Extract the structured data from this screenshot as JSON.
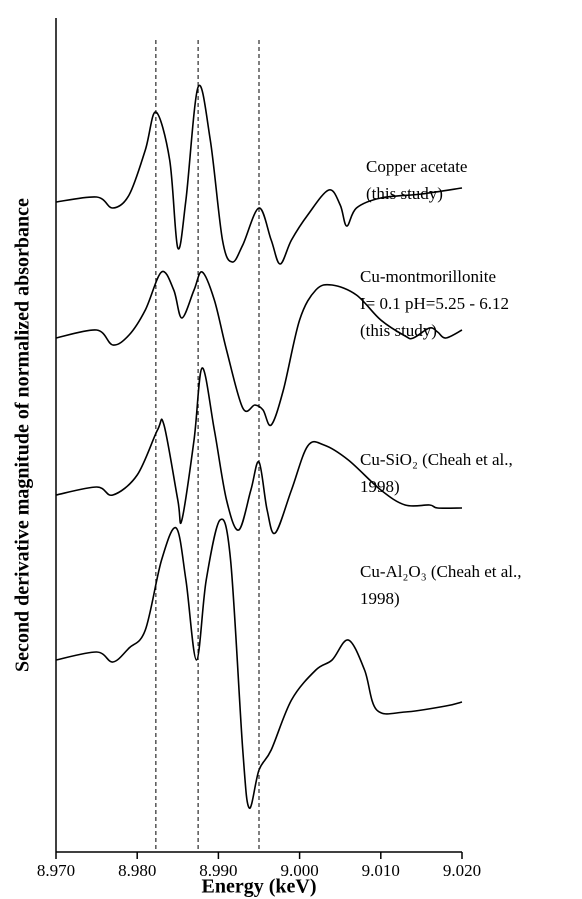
{
  "chart_data": {
    "type": "line",
    "x_label": "Energy (keV)",
    "y_label": "Second derivative magnitude of normalized absorbance",
    "xlim": [
      8.97,
      9.02
    ],
    "ylim": [
      0,
      834
    ],
    "xticks": [
      {
        "value": 8.97,
        "label": "8.970"
      },
      {
        "value": 8.98,
        "label": "8.980"
      },
      {
        "value": 8.99,
        "label": "8.990"
      },
      {
        "value": 9.0,
        "label": "9.000"
      },
      {
        "value": 9.01,
        "label": "9.010"
      },
      {
        "value": 9.02,
        "label": "9.020"
      }
    ],
    "reference_lines": [
      8.9823,
      8.9875,
      8.995
    ],
    "series": [
      {
        "label": [
          "Copper acetate",
          "(this study)"
        ],
        "color": "#000000",
        "x": [
          8.97,
          8.975,
          8.977,
          8.979,
          8.981,
          8.9823,
          8.984,
          8.985,
          8.986,
          8.9875,
          8.989,
          8.9905,
          8.9917,
          8.993,
          8.995,
          8.9965,
          8.9976,
          8.999,
          9.001,
          9.0036,
          9.005,
          9.0058,
          9.007,
          9.01,
          9.015,
          9.02
        ],
        "values": [
          650,
          655,
          644,
          657,
          702,
          740,
          692,
          604,
          652,
          765,
          712,
          612,
          590,
          607,
          644,
          612,
          588,
          612,
          637,
          662,
          647,
          626,
          644,
          654,
          658,
          664
        ]
      },
      {
        "label": [
          "Cu-montmorillonite",
          "I= 0.1 pH=5.25 - 6.12",
          "(this study)"
        ],
        "color": "#000000",
        "x": [
          8.97,
          8.975,
          8.977,
          8.979,
          8.981,
          8.983,
          8.9845,
          8.9855,
          8.987,
          8.988,
          8.9895,
          8.991,
          8.993,
          8.9945,
          8.9955,
          8.9965,
          8.998,
          9.0,
          9.002,
          9.004,
          9.007,
          9.01,
          9.013,
          9.014,
          9.016,
          9.017,
          9.018,
          9.02
        ],
        "values": [
          514,
          522,
          507,
          517,
          542,
          580,
          562,
          534,
          562,
          580,
          552,
          502,
          444,
          447,
          442,
          427,
          462,
          532,
          562,
          567,
          557,
          532,
          516,
          514,
          524,
          520,
          514,
          522
        ]
      },
      {
        "label": [
          "Cu-SiO₂ (Cheah et al.,",
          "1998)"
        ],
        "color": "#000000",
        "x": [
          8.97,
          8.975,
          8.977,
          8.98,
          8.9825,
          8.9833,
          8.985,
          8.9855,
          8.987,
          8.988,
          8.9895,
          8.991,
          8.9925,
          8.994,
          8.995,
          8.996,
          8.997,
          8.999,
          9.001,
          9.003,
          9.006,
          9.01,
          9.013,
          9.016,
          9.017,
          9.02
        ],
        "values": [
          357,
          365,
          357,
          377,
          422,
          427,
          352,
          332,
          412,
          484,
          422,
          352,
          322,
          362,
          390,
          342,
          319,
          362,
          406,
          407,
          392,
          362,
          347,
          347,
          344,
          344
        ]
      },
      {
        "label": [
          "Cu-Al₂O₃ (Cheah et al.,",
          "1998)"
        ],
        "color": "#000000",
        "x": [
          8.97,
          8.975,
          8.977,
          8.979,
          8.981,
          8.983,
          8.9848,
          8.986,
          8.9873,
          8.9885,
          8.9902,
          8.9915,
          8.993,
          8.9938,
          8.995,
          8.9965,
          8.999,
          9.002,
          9.004,
          9.006,
          9.008,
          9.0095,
          9.013,
          9.018,
          9.02
        ],
        "values": [
          192,
          200,
          190,
          204,
          222,
          292,
          324,
          272,
          192,
          272,
          332,
          292,
          102,
          44,
          82,
          102,
          152,
          182,
          192,
          212,
          182,
          142,
          140,
          146,
          150
        ]
      }
    ]
  }
}
